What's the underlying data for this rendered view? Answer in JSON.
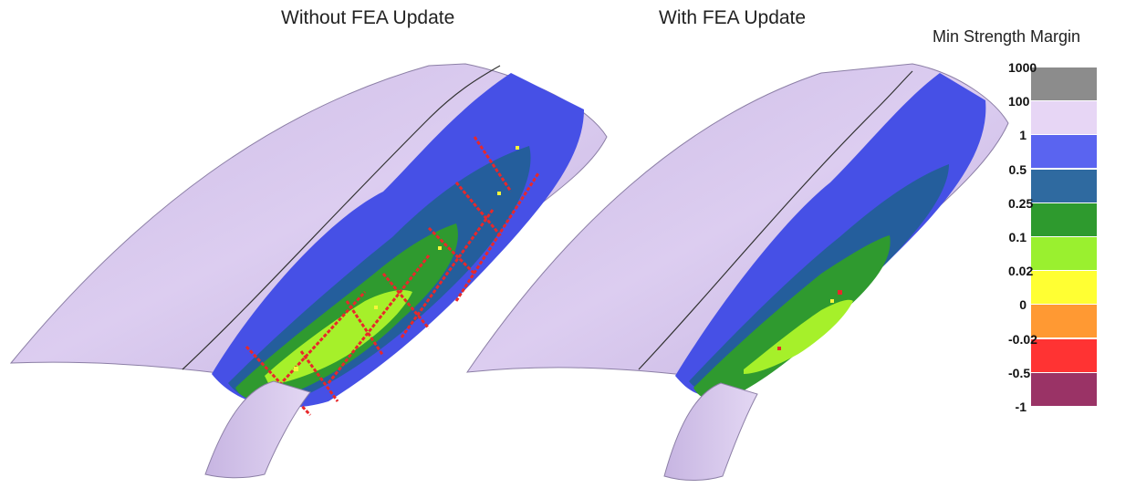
{
  "titles": {
    "left": "Without FEA Update",
    "right": "With FEA Update"
  },
  "legend": {
    "title": "Min Strength Margin",
    "labels": [
      "1000",
      "100",
      "1",
      "0.5",
      "0.25",
      "0.1",
      "0.02",
      "0",
      "-0.02",
      "-0.5",
      "-1"
    ],
    "colors": [
      "#8c8c8c",
      "#e7d6f5",
      "#5a64f0",
      "#2f6aa0",
      "#2e9a2e",
      "#9af02f",
      "#ffff33",
      "#ff9933",
      "#ff3333",
      "#9a3366"
    ]
  },
  "colors": {
    "shell": "#d9c8ee",
    "shell_shade": "#b8a6d4",
    "blue": "#4650e6",
    "navy": "#245e9c",
    "green": "#2f9a2f",
    "lime": "#a6f02a",
    "red": "#e8282a",
    "yellow": "#f5f53a"
  }
}
